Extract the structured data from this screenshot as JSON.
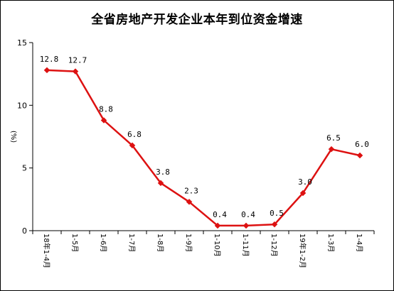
{
  "chart_data": {
    "type": "line",
    "title": "全省房地产开发企业本年到位资金增速",
    "ylabel": "(%)",
    "xlabel": "",
    "ylim": [
      0,
      15
    ],
    "yticks": [
      0,
      5,
      10,
      15
    ],
    "grid": false,
    "legend": "none",
    "categories": [
      "18年1-4月",
      "1-5月",
      "1-6月",
      "1-7月",
      "1-8月",
      "1-9月",
      "1-10月",
      "1-11月",
      "1-12月",
      "19年1-2月",
      "1-3月",
      "1-4月"
    ],
    "series": [
      {
        "values": [
          12.8,
          12.7,
          8.8,
          6.8,
          3.8,
          2.3,
          0.4,
          0.4,
          0.5,
          3.0,
          6.5,
          6.0
        ],
        "labels": [
          "12.8",
          "12.7",
          "8.8",
          "6.8",
          "3.8",
          "2.3",
          "0.4",
          "0.4",
          "0.5",
          "3.0",
          "6.5",
          "6.0"
        ],
        "color": "#dd1111"
      }
    ]
  }
}
